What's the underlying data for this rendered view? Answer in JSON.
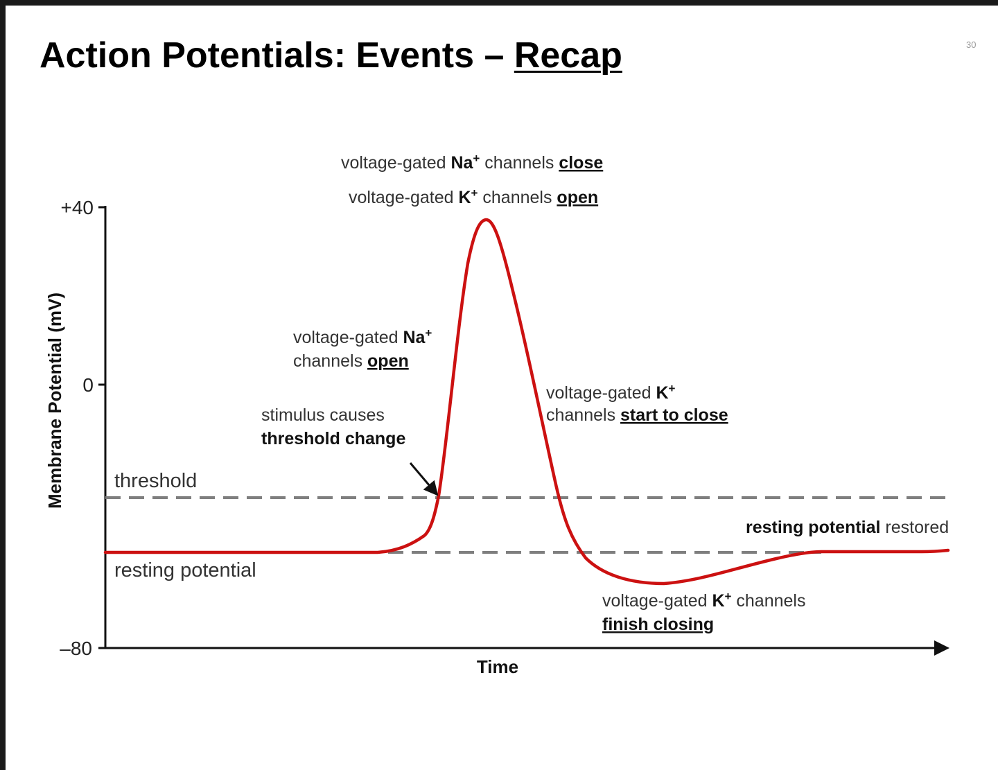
{
  "slide": {
    "title_prefix": "Action Potentials: Events – ",
    "title_emphasis": "Recap",
    "page_number": "30"
  },
  "colors": {
    "trace": "#cc1111",
    "reference_lines": "#7f7f7f",
    "axis": "#111111",
    "frame": "#1a1a1a"
  },
  "axes": {
    "y_label": "Membrane Potential (mV)",
    "x_label": "Time",
    "y_ticks": [
      "+40",
      "0",
      "–80"
    ]
  },
  "lines": {
    "threshold": "threshold",
    "resting": "resting potential"
  },
  "annotations": {
    "na_close": {
      "pre": "voltage-gated ",
      "ion": "Na",
      "charge": "+",
      "mid": " channels ",
      "key": "close"
    },
    "k_open": {
      "pre": "voltage-gated ",
      "ion": "K",
      "charge": "+",
      "mid": " channels ",
      "key": "open"
    },
    "na_open": {
      "pre": "voltage-gated ",
      "ion": "Na",
      "charge": "+",
      "line2_pre": "channels ",
      "key": "open"
    },
    "stimulus": {
      "line1": "stimulus causes",
      "line2": "threshold change"
    },
    "k_start_close": {
      "pre": "voltage-gated ",
      "ion": "K",
      "charge": "+",
      "line2_pre": "channels ",
      "key": "start to close"
    },
    "k_finish": {
      "pre": "voltage-gated ",
      "ion": "K",
      "charge": "+",
      "post": " channels",
      "key": "finish closing"
    },
    "restored": {
      "key": "resting potential",
      "post": " restored"
    }
  }
}
